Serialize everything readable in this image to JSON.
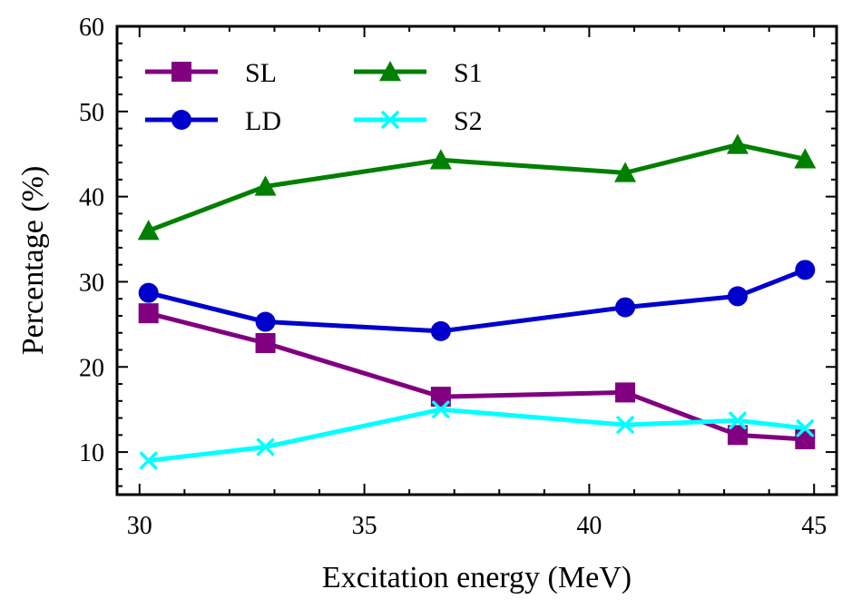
{
  "chart_data": {
    "type": "line",
    "xlabel": "Excitation energy (MeV)",
    "ylabel": "Percentage (%)",
    "xlim": [
      29.5,
      45.5
    ],
    "ylim": [
      5,
      60
    ],
    "xticks": [
      30,
      35,
      40,
      45
    ],
    "yticks": [
      10,
      20,
      30,
      40,
      50,
      60
    ],
    "x_minor_step": 1,
    "y_minor_step": 2,
    "grid": false,
    "legend_position": "top-left",
    "series": [
      {
        "name": "SL",
        "color": "#800080",
        "marker": "square",
        "x": [
          30.2,
          32.8,
          36.7,
          40.8,
          43.3,
          44.8
        ],
        "y": [
          26.3,
          22.8,
          16.5,
          17.0,
          12.0,
          11.5
        ]
      },
      {
        "name": "LD",
        "color": "#0000cd",
        "marker": "circle",
        "x": [
          30.2,
          32.8,
          36.7,
          40.8,
          43.3,
          44.8
        ],
        "y": [
          28.7,
          25.3,
          24.2,
          27.0,
          28.3,
          31.4
        ]
      },
      {
        "name": "S1",
        "color": "#007f00",
        "marker": "triangle",
        "x": [
          30.2,
          32.8,
          36.7,
          40.8,
          43.3,
          44.8
        ],
        "y": [
          36.0,
          41.2,
          44.3,
          42.8,
          46.1,
          44.4
        ]
      },
      {
        "name": "S2",
        "color": "#00ffff",
        "marker": "x",
        "x": [
          30.2,
          32.8,
          36.7,
          40.8,
          43.3,
          44.8
        ],
        "y": [
          9.0,
          10.6,
          15.0,
          13.2,
          13.7,
          12.8
        ]
      }
    ]
  }
}
